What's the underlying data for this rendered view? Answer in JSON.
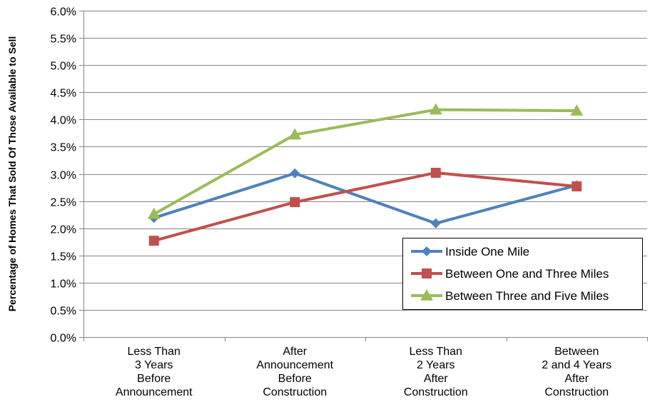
{
  "chart_data": {
    "type": "line",
    "title": "",
    "xlabel": "",
    "ylabel": "Percentage of Homes That Sold Of Those Available to Sell",
    "ylim": [
      0,
      0.06
    ],
    "y_ticks": [
      "0.0%",
      "0.5%",
      "1.0%",
      "1.5%",
      "2.0%",
      "2.5%",
      "3.0%",
      "3.5%",
      "4.0%",
      "4.5%",
      "5.0%",
      "5.5%",
      "6.0%"
    ],
    "categories": [
      [
        "Less Than",
        "3 Years",
        "Before",
        "Announcement"
      ],
      [
        "After",
        "Announcement",
        "Before",
        "Construction"
      ],
      [
        "Less Than",
        "2 Years",
        "After",
        "Construction"
      ],
      [
        "Between",
        "2 and 4 Years",
        "After",
        "Construction"
      ]
    ],
    "grid": true,
    "legend_position": "bottom-right",
    "series": [
      {
        "name": "Inside One Mile",
        "values": [
          0.0219,
          0.0301,
          0.0209,
          0.0279
        ],
        "color": "#4F81BD",
        "marker": "diamond"
      },
      {
        "name": "Between One and Three Miles",
        "values": [
          0.0177,
          0.0248,
          0.0302,
          0.0277
        ],
        "color": "#C0504D",
        "marker": "square"
      },
      {
        "name": "Between Three and Five Miles",
        "values": [
          0.0226,
          0.0372,
          0.0418,
          0.0416
        ],
        "color": "#9BBB59",
        "marker": "triangle"
      }
    ]
  }
}
